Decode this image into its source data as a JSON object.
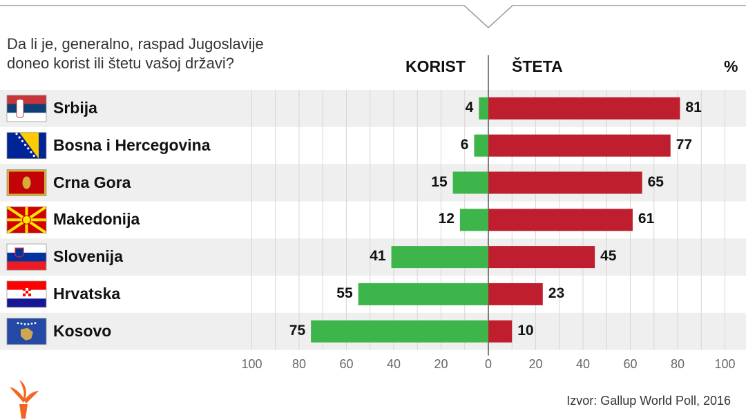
{
  "title_lines": [
    "Da li je, generalno, raspad Jugoslavije",
    "doneo korist ili štetu vašoj državi?"
  ],
  "header": {
    "left": "KORIST",
    "right": "ŠTETA",
    "unit": "%"
  },
  "source": "Izvor:  Gallup World Poll, 2016",
  "colors": {
    "benefit": "#3db54a",
    "harm": "#be1e2d",
    "row_shade": "#efefef",
    "grid": "#d6d6d6",
    "axis": "#555555"
  },
  "flags": [
    "serbia-flag-icon",
    "bosnia-flag-icon",
    "montenegro-flag-icon",
    "macedonia-flag-icon",
    "slovenia-flag-icon",
    "croatia-flag-icon",
    "kosovo-flag-icon"
  ],
  "logo": "rfe-torch-logo-icon",
  "chart_data": {
    "type": "bar",
    "orientation": "horizontal-diverging",
    "categories": [
      "Srbija",
      "Bosna i Hercegovina",
      "Crna Gora",
      "Makedonija",
      "Slovenija",
      "Hrvatska",
      "Kosovo"
    ],
    "series": [
      {
        "name": "KORIST",
        "values": [
          4,
          6,
          15,
          12,
          41,
          55,
          75
        ]
      },
      {
        "name": "ŠTETA",
        "values": [
          81,
          77,
          65,
          61,
          45,
          23,
          10
        ]
      }
    ],
    "xlim": [
      -100,
      100
    ],
    "tick_labels": [
      "100",
      "80",
      "60",
      "40",
      "20",
      "0",
      "20",
      "40",
      "60",
      "80",
      "100"
    ],
    "grid": true
  }
}
